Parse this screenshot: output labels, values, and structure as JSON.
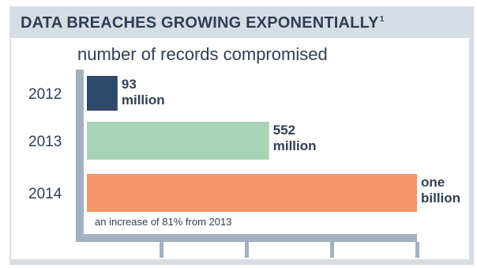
{
  "header": {
    "title": "DATA BREACHES GROWING EXPONENTIALLY",
    "footnote_mark": "1"
  },
  "chart_data": {
    "type": "bar",
    "orientation": "horizontal",
    "title": "DATA BREACHES GROWING EXPONENTIALLY",
    "subtitle": "number of records compromised",
    "categories": [
      "2012",
      "2013",
      "2014"
    ],
    "values": [
      93,
      552,
      1000
    ],
    "unit": "million",
    "value_labels": [
      [
        "93",
        "million"
      ],
      [
        "552",
        "million"
      ],
      [
        "one",
        "billion"
      ]
    ],
    "bar_colors": [
      "#2e4867",
      "#a9d3b5",
      "#f5956a"
    ],
    "xlim": [
      0,
      1000
    ],
    "grid": false,
    "annotations": [
      {
        "category": "2014",
        "text": "an increase of 81% from 2013"
      }
    ]
  },
  "colors": {
    "frame": "#d7dde4",
    "axis": "#a3b0bf",
    "text": "#2f3f55"
  }
}
